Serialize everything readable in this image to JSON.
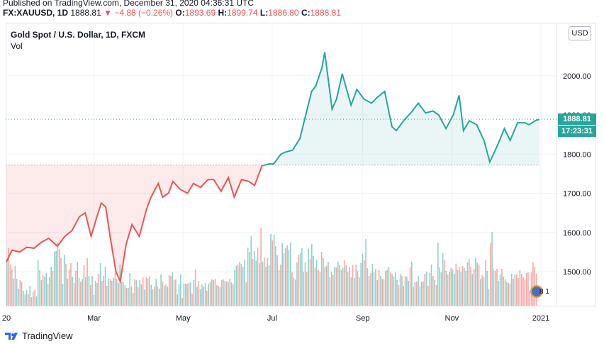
{
  "header": {
    "published": "Published on TradingView.com, December 31, 2020 04:36:31 UTC",
    "symbol": "FX:XAUUSD, 1D",
    "last": "1888.81",
    "arrow": "▼",
    "change": "−4.88 (−0.26%)",
    "o_label": "O:",
    "o_value": "1893.69",
    "h_label": "H:",
    "h_value": "1899.74",
    "l_label": "L:",
    "l_value": "1886.80",
    "c_label": "C:",
    "c_value": "1888.81"
  },
  "legend": {
    "title": "Gold Spot / U.S. Dollar, 1D, FXCM",
    "vol": "Vol"
  },
  "currency_button": "USD",
  "last_price_tag": "1888.81",
  "countdown_tag": "17:23:31",
  "event_count": "8 1",
  "brand": "TradingView",
  "colors": {
    "up": "#26a69a",
    "down": "#ef5350",
    "baseline": "#b2b5be"
  },
  "chart_data": {
    "type": "area",
    "title": "Gold Spot / U.S. Dollar, 1D, FXCM",
    "baseline_value": 1772,
    "ylim": [
      1420,
      2110
    ],
    "y_ticks": [
      1500,
      1600,
      1700,
      1800,
      1900,
      2000
    ],
    "y_tick_labels": [
      "1500.00",
      "1600.00",
      "1700.00",
      "1800.00",
      "1900.00",
      "2000.00"
    ],
    "x_tick_labels": [
      "20",
      "Mar",
      "May",
      "Jul",
      "Sep",
      "Nov",
      "2021"
    ],
    "x_tick_dates": [
      "2020-01-01",
      "2020-03-01",
      "2020-05-01",
      "2020-07-01",
      "2020-09-01",
      "2020-11-01",
      "2021-01-01"
    ],
    "grid": true,
    "series": [
      {
        "dates": [
          "2020-01-01",
          "2020-01-05",
          "2020-01-10",
          "2020-01-15",
          "2020-01-20",
          "2020-01-25",
          "2020-01-30",
          "2020-02-05",
          "2020-02-10",
          "2020-02-15",
          "2020-02-20",
          "2020-02-24",
          "2020-02-28",
          "2020-03-03",
          "2020-03-06",
          "2020-03-09",
          "2020-03-12",
          "2020-03-16",
          "2020-03-19",
          "2020-03-23",
          "2020-03-27",
          "2020-04-01",
          "2020-04-06",
          "2020-04-09",
          "2020-04-14",
          "2020-04-17",
          "2020-04-21",
          "2020-04-24",
          "2020-04-29",
          "2020-05-04",
          "2020-05-08",
          "2020-05-13",
          "2020-05-18",
          "2020-05-22",
          "2020-05-27",
          "2020-06-01",
          "2020-06-05",
          "2020-06-10",
          "2020-06-15",
          "2020-06-19",
          "2020-06-24",
          "2020-06-29",
          "2020-07-02",
          "2020-07-07",
          "2020-07-10",
          "2020-07-15",
          "2020-07-20",
          "2020-07-24",
          "2020-07-28",
          "2020-07-31",
          "2020-08-04",
          "2020-08-06",
          "2020-08-11",
          "2020-08-14",
          "2020-08-18",
          "2020-08-24",
          "2020-08-28",
          "2020-09-02",
          "2020-09-07",
          "2020-09-11",
          "2020-09-16",
          "2020-09-21",
          "2020-09-24",
          "2020-09-29",
          "2020-10-05",
          "2020-10-09",
          "2020-10-14",
          "2020-10-19",
          "2020-10-23",
          "2020-10-28",
          "2020-11-02",
          "2020-11-06",
          "2020-11-09",
          "2020-11-13",
          "2020-11-18",
          "2020-11-23",
          "2020-11-27",
          "2020-12-02",
          "2020-12-07",
          "2020-12-11",
          "2020-12-16",
          "2020-12-21",
          "2020-12-24",
          "2020-12-28",
          "2020-12-31"
        ],
        "values": [
          1525,
          1555,
          1550,
          1562,
          1560,
          1575,
          1585,
          1565,
          1590,
          1605,
          1640,
          1650,
          1590,
          1640,
          1675,
          1665,
          1590,
          1500,
          1475,
          1570,
          1620,
          1590,
          1660,
          1690,
          1725,
          1690,
          1700,
          1730,
          1710,
          1700,
          1725,
          1715,
          1735,
          1735,
          1705,
          1740,
          1690,
          1735,
          1730,
          1720,
          1770,
          1775,
          1775,
          1800,
          1805,
          1810,
          1840,
          1900,
          1960,
          1975,
          2020,
          2060,
          1915,
          1940,
          2005,
          1925,
          1965,
          1940,
          1930,
          1945,
          1960,
          1870,
          1860,
          1885,
          1910,
          1930,
          1905,
          1910,
          1900,
          1865,
          1900,
          1950,
          1860,
          1885,
          1875,
          1835,
          1780,
          1820,
          1865,
          1835,
          1880,
          1880,
          1875,
          1885,
          1888.81
        ]
      }
    ],
    "volume": [
      66,
      81,
      58,
      51,
      38,
      56,
      38,
      24,
      36,
      33,
      21,
      16,
      22,
      16,
      28,
      12,
      20,
      22,
      13,
      64,
      50,
      36,
      43,
      41,
      46,
      31,
      40,
      55,
      49,
      76,
      77,
      89,
      80,
      67,
      31,
      72,
      59,
      38,
      51,
      60,
      41,
      32,
      49,
      62,
      39,
      34,
      38,
      57,
      40,
      67,
      42,
      29,
      42,
      15,
      35,
      32,
      45,
      60,
      35,
      42,
      55,
      28,
      38,
      37,
      35,
      39,
      46,
      38,
      32,
      58,
      33,
      34,
      29,
      25,
      25,
      46,
      27,
      18,
      37,
      36,
      26,
      36,
      30,
      40,
      23,
      40,
      38,
      41,
      29,
      23,
      27,
      38,
      27,
      24,
      44,
      34,
      28,
      30,
      27,
      44,
      42,
      47,
      36,
      37,
      16,
      30,
      44,
      11,
      31,
      31,
      31,
      32,
      33,
      17,
      36,
      51,
      27,
      35,
      23,
      30,
      27,
      32,
      21,
      31,
      33,
      37,
      36,
      38,
      29,
      28,
      26,
      36,
      37,
      35,
      34,
      34,
      38,
      33,
      30,
      50,
      56,
      58,
      62,
      59,
      55,
      65,
      33,
      82,
      76,
      98,
      66,
      77,
      63,
      82,
      60,
      110,
      62,
      68,
      55,
      67,
      57,
      101,
      92,
      100,
      84,
      71,
      50,
      58,
      88,
      74,
      81,
      85,
      79,
      89,
      47,
      39,
      37,
      61,
      72,
      74,
      81,
      48,
      61,
      48,
      80,
      66,
      87,
      70,
      54,
      65,
      50,
      47,
      76,
      67,
      54,
      56,
      62,
      40,
      48,
      43,
      55,
      54,
      62,
      57,
      50,
      53,
      64,
      57,
      48,
      55,
      40,
      57,
      39,
      58,
      49,
      40,
      60,
      73,
      64,
      94,
      53,
      42,
      46,
      59,
      47,
      52,
      36,
      50,
      42,
      38,
      37,
      49,
      51,
      55,
      47,
      45,
      41,
      47,
      36,
      29,
      45,
      42,
      28,
      42,
      41,
      35,
      54,
      62,
      27,
      33,
      34,
      42,
      27,
      34,
      34,
      45,
      48,
      28,
      46,
      58,
      42,
      36,
      29,
      89,
      54,
      47,
      74,
      64,
      49,
      44,
      48,
      53,
      51,
      45,
      59,
      50,
      55,
      48,
      56,
      53,
      49,
      61,
      66,
      55,
      45,
      52,
      68,
      61,
      58,
      38,
      43,
      40,
      64,
      49,
      24,
      88,
      104,
      51,
      49,
      52,
      35,
      44,
      52,
      41,
      37,
      34,
      32,
      31,
      45,
      38,
      44,
      44,
      39,
      50,
      45,
      40,
      36,
      46,
      47,
      21,
      47,
      61,
      55,
      45
    ],
    "volume_up": [
      true,
      false,
      false,
      true,
      true,
      false,
      true,
      true,
      false,
      true,
      false,
      true,
      true,
      false,
      true,
      false,
      true,
      false,
      true,
      true,
      false,
      true,
      false,
      true,
      true,
      false,
      true,
      true,
      false,
      true,
      true,
      false,
      true,
      false,
      true,
      true,
      false,
      true,
      true,
      false,
      true,
      false,
      false,
      true,
      true,
      false,
      true,
      false,
      true,
      false,
      true,
      false,
      true,
      true,
      false,
      true,
      false,
      true,
      false,
      true,
      true,
      false,
      true,
      false,
      true,
      true,
      false,
      true,
      false,
      true,
      true,
      false,
      true,
      false,
      true,
      true,
      false,
      true,
      false,
      true,
      false,
      true,
      true,
      false,
      true,
      false,
      true,
      false,
      true,
      true,
      false,
      true,
      false,
      true,
      true,
      false,
      true,
      false,
      true,
      true,
      false,
      true,
      false,
      true,
      false,
      true,
      true,
      false,
      true,
      false,
      true,
      false,
      true,
      false,
      true,
      false,
      true,
      false,
      true,
      true,
      false,
      true,
      false,
      true,
      false,
      true,
      true,
      false,
      true,
      false,
      true,
      false,
      true,
      true,
      false,
      true,
      false,
      true,
      false,
      true,
      true,
      false,
      true,
      false,
      true,
      true,
      false,
      true,
      false,
      true,
      false,
      true,
      true,
      false,
      true,
      false,
      true,
      false,
      true,
      true,
      false,
      true,
      false,
      true,
      false,
      true,
      true,
      false,
      true,
      false,
      true,
      false,
      true,
      true,
      false,
      true,
      false,
      true,
      false,
      true,
      true,
      false,
      true,
      false,
      true,
      false,
      true,
      true,
      false,
      true,
      false,
      true,
      false,
      true,
      true,
      false,
      true,
      false,
      true,
      false,
      true,
      false,
      true,
      true,
      false,
      true,
      false,
      true,
      false,
      true,
      true,
      false,
      true,
      false,
      true,
      false,
      true,
      true,
      false,
      true,
      false,
      true,
      false,
      true,
      true,
      false,
      true,
      false,
      true,
      false,
      true,
      true,
      false,
      true,
      false,
      true,
      false,
      true,
      true,
      false,
      true,
      false,
      true,
      false,
      true,
      true,
      false,
      true,
      false,
      true,
      false,
      true,
      true,
      false,
      true,
      false,
      true,
      false,
      true,
      true,
      false,
      true,
      false,
      true,
      false,
      true,
      true,
      false,
      true,
      false,
      true,
      false,
      true,
      true,
      false,
      true,
      false,
      true,
      false,
      true,
      true,
      false,
      true,
      false,
      true,
      false,
      true,
      true,
      false,
      true,
      false,
      true,
      false,
      true,
      true,
      false,
      true,
      false,
      true,
      false,
      true,
      true,
      false,
      true,
      false,
      true,
      false,
      true,
      true,
      false,
      true,
      false
    ]
  }
}
